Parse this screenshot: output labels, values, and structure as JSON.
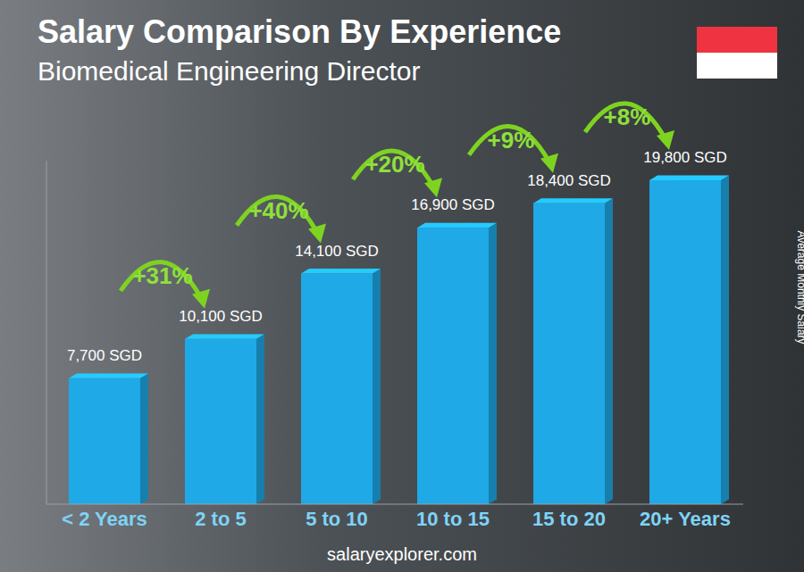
{
  "chart_data": {
    "type": "bar",
    "title": "Salary Comparison By Experience",
    "subtitle": "Biomedical Engineering Director",
    "y_label": "Average Monthly Salary",
    "footer": "salaryexplorer.com",
    "categories": [
      "< 2 Years",
      "2 to 5",
      "5 to 10",
      "10 to 15",
      "15 to 20",
      "20+ Years"
    ],
    "values": [
      7700,
      10100,
      14100,
      16900,
      18400,
      19800
    ],
    "value_labels": [
      "7,700 SGD",
      "10,100 SGD",
      "14,100 SGD",
      "16,900 SGD",
      "18,400 SGD",
      "19,800 SGD"
    ],
    "annotations": [
      null,
      "+31%",
      "+40%",
      "+20%",
      "+9%",
      "+8%"
    ],
    "color": "#1fa9e6",
    "ylim": [
      0,
      21000
    ],
    "data_labels": true,
    "tick_labels": "x",
    "grid": false
  }
}
